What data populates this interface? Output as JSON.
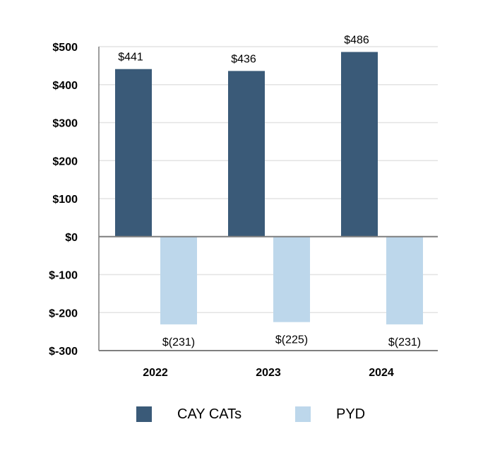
{
  "chart_data": {
    "type": "bar",
    "title": "",
    "xlabel": "",
    "ylabel": "",
    "categories": [
      "2022",
      "2023",
      "2024"
    ],
    "series": [
      {
        "name": "CAY CATs",
        "values": [
          441,
          436,
          486
        ],
        "labels": [
          "$441",
          "$436",
          "$486"
        ],
        "color": "#3a5a78"
      },
      {
        "name": "PYD",
        "values": [
          -231,
          -225,
          -231
        ],
        "labels": [
          "$(231)",
          "$(225)",
          "$(231)"
        ],
        "color": "#bdd7eb"
      }
    ],
    "ylim": [
      -300,
      500
    ],
    "yticks": [
      500,
      400,
      300,
      200,
      100,
      0,
      -100,
      -200,
      -300
    ],
    "ytick_labels": [
      "$500",
      "$400",
      "$300",
      "$200",
      "$100",
      "$0",
      "$-100",
      "$-200",
      "$-300"
    ],
    "grid": true,
    "legend_position": "bottom"
  },
  "legend": {
    "items": [
      {
        "label": "CAY CATs",
        "color": "#3a5a78"
      },
      {
        "label": "PYD",
        "color": "#bdd7eb"
      }
    ]
  }
}
